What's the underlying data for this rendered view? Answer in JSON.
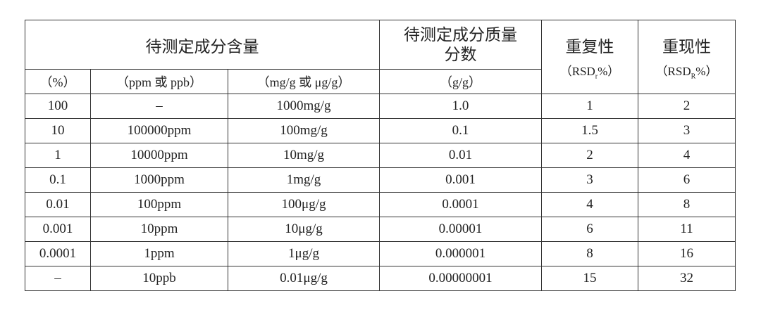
{
  "table": {
    "header": {
      "group": "待测定成分含量",
      "mass_fraction": [
        "待测定成分质量",
        "分数"
      ],
      "repeatability": "重复性",
      "repeatability_unit": {
        "prefix": "（RSD",
        "sub": "r",
        "suffix": "%）"
      },
      "reproducibility": "重现性",
      "reproducibility_unit": {
        "prefix": "（RSD",
        "sub": "R",
        "suffix": "%）"
      },
      "units": [
        "（%）",
        "（ppm 或 ppb）",
        "（mg/g 或 μg/g）",
        "（g/g）"
      ]
    },
    "rows": [
      [
        "100",
        "–",
        "1000mg/g",
        "1.0",
        "1",
        "2"
      ],
      [
        "10",
        "100000ppm",
        "100mg/g",
        "0.1",
        "1.5",
        "3"
      ],
      [
        "1",
        "10000ppm",
        "10mg/g",
        "0.01",
        "2",
        "4"
      ],
      [
        "0.1",
        "1000ppm",
        "1mg/g",
        "0.001",
        "3",
        "6"
      ],
      [
        "0.01",
        "100ppm",
        "100μg/g",
        "0.0001",
        "4",
        "8"
      ],
      [
        "0.001",
        "10ppm",
        "10μg/g",
        "0.00001",
        "6",
        "11"
      ],
      [
        "0.0001",
        "1ppm",
        "1μg/g",
        "0.000001",
        "8",
        "16"
      ],
      [
        "–",
        "10ppb",
        "0.01μg/g",
        "0.00000001",
        "15",
        "32"
      ]
    ]
  }
}
